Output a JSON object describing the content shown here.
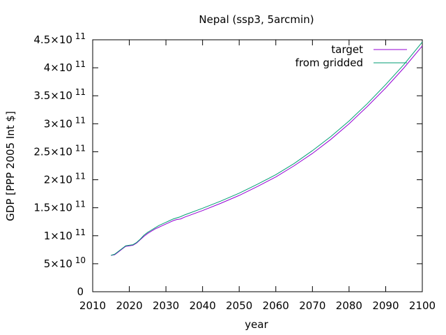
{
  "chart_data": {
    "type": "line",
    "title": "Nepal (ssp3, 5arcmin)",
    "xlabel": "year",
    "ylabel": "GDP [PPP 2005 Int $]",
    "xlim": [
      2010,
      2100
    ],
    "ylim": [
      0,
      450000000000
    ],
    "x_ticks": [
      2010,
      2020,
      2030,
      2040,
      2050,
      2060,
      2070,
      2080,
      2090,
      2100
    ],
    "x_tick_labels": [
      "2010",
      "2020",
      "2030",
      "2040",
      "2050",
      "2060",
      "2070",
      "2080",
      "2090",
      "2100"
    ],
    "y_ticks": [
      {
        "value": 0,
        "mantissa": "0",
        "exp": ""
      },
      {
        "value": 50000000000,
        "mantissa": "5×10",
        "exp": "10"
      },
      {
        "value": 100000000000,
        "mantissa": "1×10",
        "exp": "11"
      },
      {
        "value": 150000000000,
        "mantissa": "1.5×10",
        "exp": "11"
      },
      {
        "value": 200000000000,
        "mantissa": "2×10",
        "exp": "11"
      },
      {
        "value": 250000000000,
        "mantissa": "2.5×10",
        "exp": "11"
      },
      {
        "value": 300000000000,
        "mantissa": "3×10",
        "exp": "11"
      },
      {
        "value": 350000000000,
        "mantissa": "3.5×10",
        "exp": "11"
      },
      {
        "value": 400000000000,
        "mantissa": "4×10",
        "exp": "11"
      },
      {
        "value": 450000000000,
        "mantissa": "4.5×10",
        "exp": "11"
      }
    ],
    "legend_position": "top-right",
    "grid": false,
    "series": [
      {
        "name": "target",
        "color": "#9400d3",
        "x": [
          2015,
          2016,
          2017,
          2018,
          2019,
          2020,
          2021,
          2022,
          2023,
          2024,
          2025,
          2026,
          2027,
          2028,
          2029,
          2030,
          2031,
          2032,
          2033,
          2034,
          2035,
          2040,
          2045,
          2050,
          2055,
          2060,
          2065,
          2070,
          2075,
          2080,
          2085,
          2090,
          2095,
          2100
        ],
        "y": [
          65000000000,
          66000000000,
          71000000000,
          76000000000,
          81000000000,
          82000000000,
          83000000000,
          87000000000,
          93000000000,
          99000000000,
          104000000000,
          108000000000,
          112000000000,
          115000000000,
          118000000000,
          121000000000,
          124000000000,
          127000000000,
          129000000000,
          130000000000,
          133000000000,
          145000000000,
          158000000000,
          172000000000,
          188000000000,
          205000000000,
          225000000000,
          247000000000,
          272000000000,
          300000000000,
          331000000000,
          364000000000,
          400000000000,
          439000000000
        ]
      },
      {
        "name": "from gridded",
        "color": "#009e73",
        "x": [
          2015,
          2016,
          2017,
          2018,
          2019,
          2020,
          2021,
          2022,
          2023,
          2024,
          2025,
          2026,
          2027,
          2028,
          2029,
          2030,
          2031,
          2032,
          2033,
          2034,
          2035,
          2040,
          2045,
          2050,
          2055,
          2060,
          2065,
          2070,
          2075,
          2080,
          2085,
          2090,
          2095,
          2100
        ],
        "y": [
          65000000000,
          67000000000,
          72000000000,
          77000000000,
          82000000000,
          83000000000,
          84000000000,
          88000000000,
          94000000000,
          101000000000,
          106000000000,
          110000000000,
          114000000000,
          118000000000,
          121000000000,
          124000000000,
          127000000000,
          130000000000,
          132000000000,
          134000000000,
          137000000000,
          149000000000,
          162000000000,
          176000000000,
          192000000000,
          209000000000,
          229000000000,
          252000000000,
          277000000000,
          305000000000,
          336000000000,
          370000000000,
          406000000000,
          446000000000
        ]
      }
    ]
  }
}
